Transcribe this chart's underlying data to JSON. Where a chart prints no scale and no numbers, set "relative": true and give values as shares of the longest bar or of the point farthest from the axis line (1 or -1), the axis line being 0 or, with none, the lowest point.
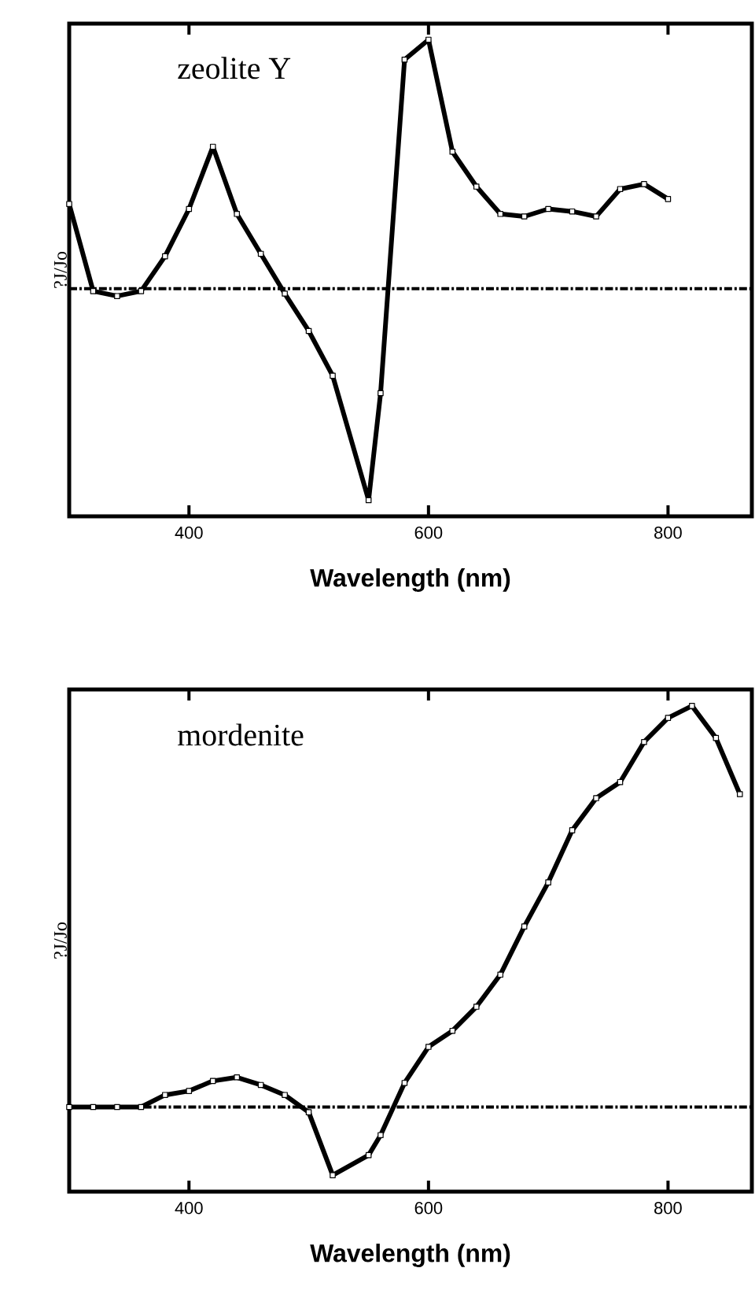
{
  "chart_data": [
    {
      "type": "line",
      "title": "zeolite Y",
      "xlabel": "Wavelength (nm)",
      "ylabel": "?J/Jo",
      "relative": true,
      "color": "#000000",
      "marker": "square",
      "line_style": "solid",
      "x": [
        300,
        320,
        340,
        360,
        380,
        400,
        420,
        440,
        460,
        480,
        500,
        520,
        550,
        560,
        580,
        600,
        620,
        640,
        660,
        680,
        700,
        720,
        740,
        760,
        780,
        800
      ],
      "values": [
        0.34,
        -0.01,
        -0.03,
        -0.01,
        0.13,
        0.32,
        0.57,
        0.3,
        0.14,
        -0.02,
        -0.17,
        -0.35,
        -0.85,
        -0.42,
        0.92,
        1,
        0.55,
        0.41,
        0.3,
        0.29,
        0.32,
        0.31,
        0.29,
        0.4,
        0.42,
        0.36
      ],
      "xlim": [
        300,
        870
      ],
      "xticks": [
        400,
        600,
        800
      ],
      "ref_lines": [
        {
          "axis": "y",
          "value": 0,
          "line_style": "dashed",
          "color": "#000000"
        }
      ]
    },
    {
      "type": "line",
      "title": "mordenite",
      "xlabel": "Wavelength (nm)",
      "ylabel": "?J/Jo",
      "relative": true,
      "color": "#000000",
      "marker": "square",
      "line_style": "solid",
      "x": [
        300,
        320,
        340,
        360,
        380,
        400,
        420,
        440,
        460,
        480,
        500,
        520,
        550,
        560,
        580,
        600,
        620,
        640,
        660,
        680,
        700,
        720,
        740,
        760,
        780,
        800,
        820,
        840,
        860
      ],
      "values": [
        0,
        0,
        0,
        0,
        0.03,
        0.04,
        0.065,
        0.074,
        0.055,
        0.03,
        -0.013,
        -0.17,
        -0.12,
        -0.07,
        0.06,
        0.15,
        0.19,
        0.25,
        0.33,
        0.45,
        0.56,
        0.69,
        0.77,
        0.81,
        0.91,
        0.97,
        1,
        0.92,
        0.78
      ],
      "xlim": [
        300,
        870
      ],
      "xticks": [
        400,
        600,
        800
      ],
      "ref_lines": [
        {
          "axis": "y",
          "value": 0,
          "line_style": "dashed",
          "color": "#000000"
        }
      ]
    }
  ]
}
